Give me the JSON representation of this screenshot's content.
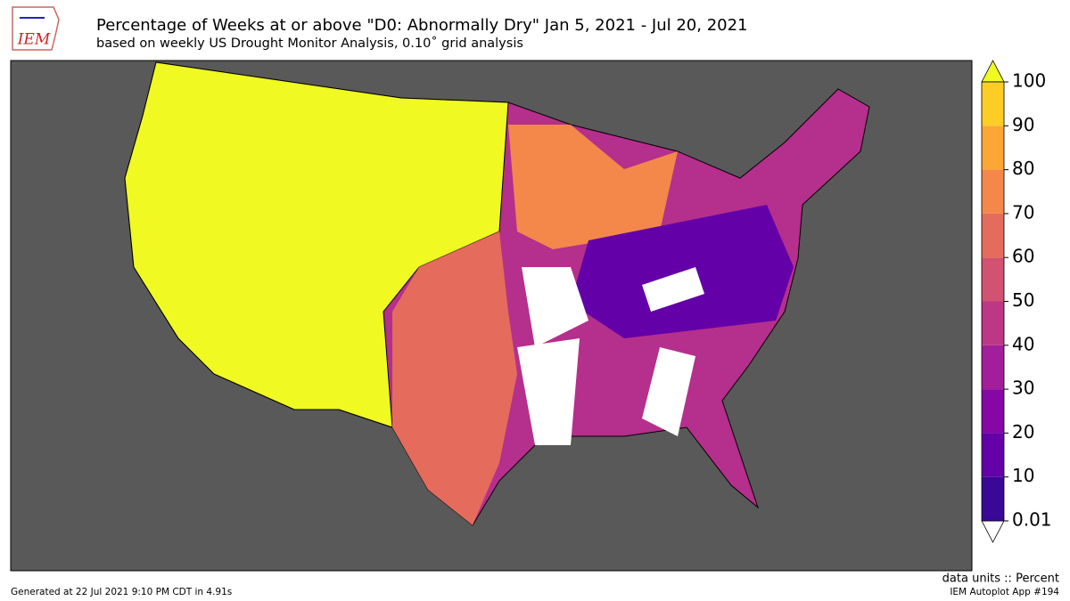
{
  "logo": {
    "text": "IEM"
  },
  "header": {
    "title": "Percentage of Weeks at or above \"D0: Abnormally Dry\" Jan 5, 2021 - Jul 20, 2021",
    "subtitle": "based on weekly US Drought Monitor Analysis, 0.10˚ grid analysis"
  },
  "colorbar": {
    "ticks": [
      0.01,
      10,
      20,
      30,
      40,
      50,
      60,
      70,
      80,
      90,
      100
    ],
    "colors": [
      "#3a0896",
      "#6300a7",
      "#8606a6",
      "#a31e9a",
      "#bd3786",
      "#d35171",
      "#e56b5d",
      "#f3884a",
      "#fca636",
      "#fcce25"
    ],
    "over_color": "#f0f921",
    "under_color": "#ffffff"
  },
  "footer": {
    "generated": "Generated at 22 Jul 2021 9:10 PM CDT in 4.91s",
    "units": "data units :: Percent",
    "app": "IEM Autoplot App #194"
  }
}
